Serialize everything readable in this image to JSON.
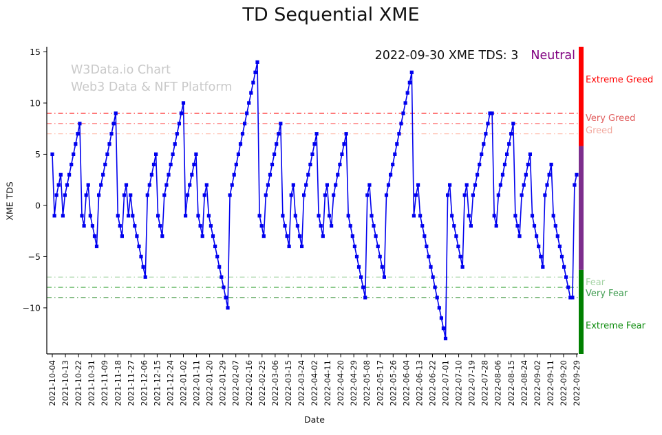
{
  "title": "TD Sequential XME",
  "watermark": {
    "line1": "W3Data.io Chart",
    "line2": "Web3 Data & NFT Platform"
  },
  "annotation": {
    "text": "2022-09-30 XME TDS: 3",
    "sentiment": "Neutral",
    "sentiment_color": "#800080"
  },
  "chart_data": {
    "type": "line",
    "title": "TD Sequential XME",
    "xlabel": "Date",
    "ylabel": "XME TDS",
    "ylim": [
      -14.5,
      15.5
    ],
    "yticks": [
      15,
      10,
      5,
      0,
      -5,
      -10
    ],
    "grid": false,
    "line_color": "#0000ee",
    "marker": "square",
    "x_tick_labels": [
      "2021-10-04",
      "2021-10-13",
      "2021-10-22",
      "2021-10-31",
      "2021-11-09",
      "2021-11-18",
      "2021-11-27",
      "2021-12-06",
      "2021-12-15",
      "2021-12-24",
      "2022-01-02",
      "2022-01-11",
      "2022-01-20",
      "2022-01-29",
      "2022-02-07",
      "2022-02-16",
      "2022-02-25",
      "2022-03-06",
      "2022-03-15",
      "2022-03-24",
      "2022-04-02",
      "2022-04-11",
      "2022-04-20",
      "2022-04-29",
      "2022-05-08",
      "2022-05-17",
      "2022-05-26",
      "2022-06-04",
      "2022-06-13",
      "2022-06-22",
      "2022-07-01",
      "2022-07-10",
      "2022-07-19",
      "2022-07-28",
      "2022-08-06",
      "2022-08-15",
      "2022-08-24",
      "2022-09-02",
      "2022-09-11",
      "2022-09-20",
      "2022-09-29"
    ],
    "series": [
      {
        "name": "XME TDS",
        "color": "#0000ee",
        "values": [
          5,
          -1,
          1,
          2,
          3,
          -1,
          1,
          2,
          3,
          4,
          5,
          6,
          7,
          8,
          -1,
          -2,
          1,
          2,
          -1,
          -2,
          -3,
          -4,
          1,
          2,
          3,
          4,
          5,
          6,
          7,
          8,
          9,
          -1,
          -2,
          -3,
          1,
          2,
          -1,
          1,
          -1,
          -2,
          -3,
          -4,
          -5,
          -6,
          -7,
          1,
          2,
          3,
          4,
          5,
          -1,
          -2,
          -3,
          1,
          2,
          3,
          4,
          5,
          6,
          7,
          8,
          9,
          10,
          -1,
          1,
          2,
          3,
          4,
          5,
          -1,
          -2,
          -3,
          1,
          2,
          -1,
          -2,
          -3,
          -4,
          -5,
          -6,
          -7,
          -8,
          -9,
          -10,
          1,
          2,
          3,
          4,
          5,
          6,
          7,
          8,
          9,
          10,
          11,
          12,
          13,
          14,
          -1,
          -2,
          -3,
          1,
          2,
          3,
          4,
          5,
          6,
          7,
          8,
          -1,
          -2,
          -3,
          -4,
          1,
          2,
          -1,
          -2,
          -3,
          -4,
          1,
          2,
          3,
          4,
          5,
          6,
          7,
          -1,
          -2,
          -3,
          1,
          2,
          -1,
          -2,
          1,
          2,
          3,
          4,
          5,
          6,
          7,
          -1,
          -2,
          -3,
          -4,
          -5,
          -6,
          -7,
          -8,
          -9,
          1,
          2,
          -1,
          -2,
          -3,
          -4,
          -5,
          -6,
          -7,
          1,
          2,
          3,
          4,
          5,
          6,
          7,
          8,
          9,
          10,
          11,
          12,
          13,
          -1,
          1,
          2,
          -1,
          -2,
          -3,
          -4,
          -5,
          -6,
          -7,
          -8,
          -9,
          -10,
          -11,
          -12,
          -13,
          1,
          2,
          -1,
          -2,
          -3,
          -4,
          -5,
          -6,
          1,
          2,
          -1,
          -2,
          1,
          2,
          3,
          4,
          5,
          6,
          7,
          8,
          9,
          9,
          -1,
          -2,
          1,
          2,
          3,
          4,
          5,
          6,
          7,
          8,
          -1,
          -2,
          -3,
          1,
          2,
          3,
          4,
          5,
          -1,
          -2,
          -3,
          -4,
          -5,
          -6,
          1,
          2,
          3,
          4,
          -1,
          -2,
          -3,
          -4,
          -5,
          -6,
          -7,
          -8,
          -9,
          -9,
          2,
          3
        ]
      }
    ],
    "thresholds": [
      {
        "y": 9,
        "color": "#ff1a1a"
      },
      {
        "y": 8,
        "color": "#ff8080"
      },
      {
        "y": 7,
        "color": "#ffc3b4"
      },
      {
        "y": -7,
        "color": "#aed8ae"
      },
      {
        "y": -8,
        "color": "#5fb65f"
      },
      {
        "y": -9,
        "color": "#2a8a2a"
      }
    ],
    "zone_labels": [
      {
        "text": "Extreme Greed",
        "y": 12.3,
        "color": "#ff0000"
      },
      {
        "text": "Very Greed",
        "y": 8.55,
        "color": "#e05b5b"
      },
      {
        "text": "Greed",
        "y": 7.35,
        "color": "#f2aaa0"
      },
      {
        "text": "Fear",
        "y": -7.5,
        "color": "#a4d3a4"
      },
      {
        "text": "Very Fear",
        "y": -8.55,
        "color": "#3e9b4f"
      },
      {
        "text": "Extreme Fear",
        "y": -11.7,
        "color": "#0a8a0a"
      }
    ],
    "right_bar": [
      {
        "name": "greed-zone",
        "from": 15.5,
        "to": 5.8,
        "color": "#ff0000"
      },
      {
        "name": "neutral-zone",
        "from": 5.8,
        "to": -6.3,
        "color": "#7d2e8d"
      },
      {
        "name": "fear-zone",
        "from": -6.3,
        "to": -14.5,
        "color": "#008000"
      }
    ]
  }
}
